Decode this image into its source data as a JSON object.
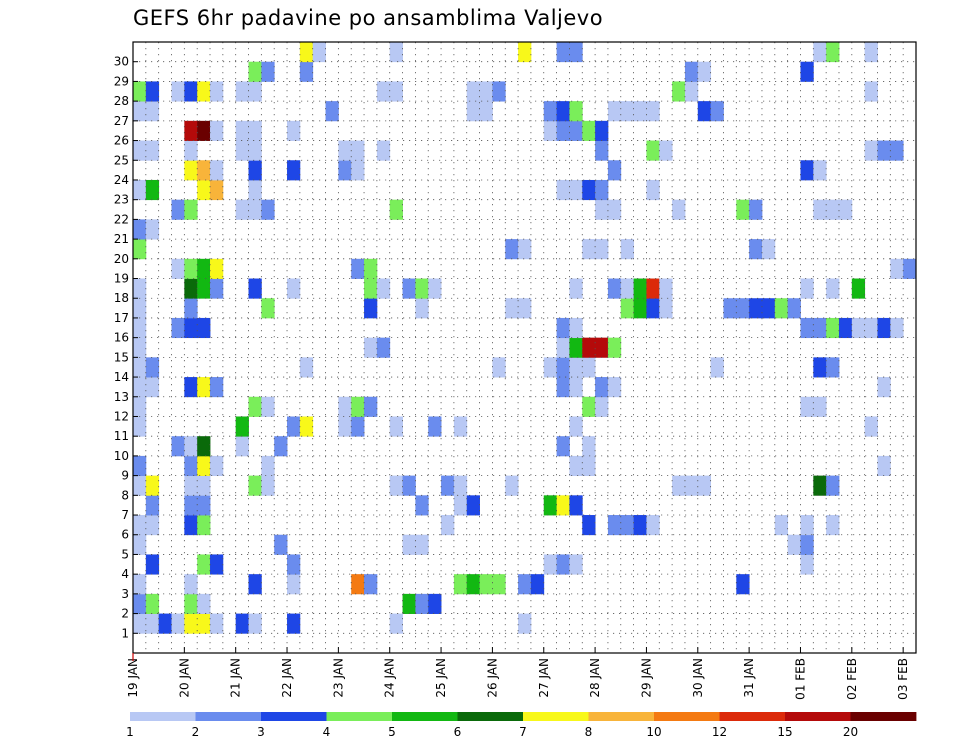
{
  "chart_data": {
    "type": "heatmap",
    "title": "GEFS 6hr padavine po ansamblima Valjevo",
    "xlabel": "",
    "ylabel": "",
    "x_tick_labels": [
      "19 JAN",
      "20 JAN",
      "21 JAN",
      "22 JAN",
      "23 JAN",
      "24 JAN",
      "25 JAN",
      "26 JAN",
      "27 JAN",
      "28 JAN",
      "29 JAN",
      "30 JAN",
      "31 JAN",
      "01 FEB",
      "02 FEB",
      "03 FEB"
    ],
    "y_tick_labels": [
      "1",
      "2",
      "3",
      "4",
      "5",
      "6",
      "7",
      "8",
      "9",
      "10",
      "11",
      "12",
      "13",
      "14",
      "15",
      "16",
      "17",
      "18",
      "19",
      "20",
      "21",
      "22",
      "23",
      "24",
      "25",
      "26",
      "27",
      "28",
      "29",
      "30"
    ],
    "time_steps": 61,
    "members": 31,
    "grid": true,
    "legend": {
      "placement": "bottom",
      "colors": [
        "#b8c8f4",
        "#6a8cee",
        "#1e46e6",
        "#7aee5a",
        "#12b812",
        "#0a6a0a",
        "#f8f81a",
        "#f8b43a",
        "#f47a12",
        "#dc2a0a",
        "#b40a0a",
        "#6a0000"
      ],
      "labels": [
        "1",
        "2",
        "3",
        "4",
        "5",
        "6",
        "7",
        "8",
        "10",
        "12",
        "15",
        "20"
      ]
    },
    "cells": [
      [
        0,
        1,
        1
      ],
      [
        1,
        1,
        1
      ],
      [
        2,
        1,
        3
      ],
      [
        3,
        1,
        1
      ],
      [
        4,
        1,
        7
      ],
      [
        5,
        1,
        7
      ],
      [
        6,
        1,
        1
      ],
      [
        8,
        1,
        3
      ],
      [
        9,
        1,
        1
      ],
      [
        12,
        1,
        3
      ],
      [
        20,
        1,
        1
      ],
      [
        30,
        1,
        1
      ],
      [
        0,
        2,
        2
      ],
      [
        1,
        2,
        4
      ],
      [
        4,
        2,
        4
      ],
      [
        5,
        2,
        1
      ],
      [
        21,
        2,
        5
      ],
      [
        22,
        2,
        2
      ],
      [
        23,
        2,
        3
      ],
      [
        0,
        3,
        1
      ],
      [
        4,
        3,
        1
      ],
      [
        9,
        3,
        3
      ],
      [
        12,
        3,
        1
      ],
      [
        17,
        3,
        9
      ],
      [
        18,
        3,
        2
      ],
      [
        25,
        3,
        4
      ],
      [
        26,
        3,
        5
      ],
      [
        27,
        3,
        4
      ],
      [
        28,
        3,
        4
      ],
      [
        30,
        3,
        2
      ],
      [
        31,
        3,
        3
      ],
      [
        47,
        3,
        3
      ],
      [
        1,
        4,
        3
      ],
      [
        5,
        4,
        4
      ],
      [
        6,
        4,
        3
      ],
      [
        12,
        4,
        2
      ],
      [
        32,
        4,
        1
      ],
      [
        33,
        4,
        2
      ],
      [
        34,
        4,
        1
      ],
      [
        52,
        4,
        1
      ],
      [
        0,
        5,
        1
      ],
      [
        11,
        5,
        2
      ],
      [
        21,
        5,
        1
      ],
      [
        22,
        5,
        1
      ],
      [
        51,
        5,
        1
      ],
      [
        52,
        5,
        2
      ],
      [
        0,
        6,
        1
      ],
      [
        1,
        6,
        1
      ],
      [
        4,
        6,
        3
      ],
      [
        5,
        6,
        4
      ],
      [
        24,
        6,
        1
      ],
      [
        35,
        6,
        3
      ],
      [
        37,
        6,
        2
      ],
      [
        38,
        6,
        2
      ],
      [
        39,
        6,
        3
      ],
      [
        40,
        6,
        1
      ],
      [
        50,
        6,
        1
      ],
      [
        52,
        6,
        1
      ],
      [
        54,
        6,
        1
      ],
      [
        1,
        7,
        2
      ],
      [
        4,
        7,
        2
      ],
      [
        5,
        7,
        2
      ],
      [
        22,
        7,
        2
      ],
      [
        25,
        7,
        1
      ],
      [
        26,
        7,
        3
      ],
      [
        32,
        7,
        5
      ],
      [
        33,
        7,
        7
      ],
      [
        34,
        7,
        3
      ],
      [
        0,
        8,
        1
      ],
      [
        1,
        8,
        7
      ],
      [
        4,
        8,
        1
      ],
      [
        5,
        8,
        1
      ],
      [
        9,
        8,
        4
      ],
      [
        10,
        8,
        1
      ],
      [
        20,
        8,
        1
      ],
      [
        21,
        8,
        2
      ],
      [
        24,
        8,
        2
      ],
      [
        25,
        8,
        1
      ],
      [
        29,
        8,
        1
      ],
      [
        42,
        8,
        1
      ],
      [
        43,
        8,
        1
      ],
      [
        44,
        8,
        1
      ],
      [
        53,
        8,
        6
      ],
      [
        54,
        8,
        2
      ],
      [
        0,
        9,
        2
      ],
      [
        4,
        9,
        2
      ],
      [
        5,
        9,
        7
      ],
      [
        6,
        9,
        1
      ],
      [
        10,
        9,
        1
      ],
      [
        34,
        9,
        1
      ],
      [
        35,
        9,
        1
      ],
      [
        58,
        9,
        1
      ],
      [
        3,
        10,
        2
      ],
      [
        4,
        10,
        1
      ],
      [
        5,
        10,
        6
      ],
      [
        8,
        10,
        1
      ],
      [
        11,
        10,
        2
      ],
      [
        33,
        10,
        2
      ],
      [
        35,
        10,
        1
      ],
      [
        0,
        11,
        1
      ],
      [
        8,
        11,
        5
      ],
      [
        12,
        11,
        2
      ],
      [
        13,
        11,
        7
      ],
      [
        16,
        11,
        1
      ],
      [
        17,
        11,
        2
      ],
      [
        20,
        11,
        1
      ],
      [
        23,
        11,
        2
      ],
      [
        25,
        11,
        1
      ],
      [
        34,
        11,
        1
      ],
      [
        57,
        11,
        1
      ],
      [
        0,
        12,
        1
      ],
      [
        9,
        12,
        4
      ],
      [
        10,
        12,
        1
      ],
      [
        16,
        12,
        1
      ],
      [
        17,
        12,
        4
      ],
      [
        18,
        12,
        2
      ],
      [
        35,
        12,
        4
      ],
      [
        36,
        12,
        1
      ],
      [
        52,
        12,
        1
      ],
      [
        53,
        12,
        1
      ],
      [
        0,
        13,
        1
      ],
      [
        1,
        13,
        1
      ],
      [
        4,
        13,
        3
      ],
      [
        5,
        13,
        7
      ],
      [
        6,
        13,
        2
      ],
      [
        33,
        13,
        2
      ],
      [
        34,
        13,
        1
      ],
      [
        36,
        13,
        2
      ],
      [
        37,
        13,
        1
      ],
      [
        58,
        13,
        1
      ],
      [
        0,
        14,
        1
      ],
      [
        1,
        14,
        2
      ],
      [
        13,
        14,
        1
      ],
      [
        28,
        14,
        1
      ],
      [
        32,
        14,
        1
      ],
      [
        33,
        14,
        2
      ],
      [
        34,
        14,
        1
      ],
      [
        35,
        14,
        1
      ],
      [
        45,
        14,
        1
      ],
      [
        53,
        14,
        3
      ],
      [
        54,
        14,
        2
      ],
      [
        0,
        15,
        1
      ],
      [
        18,
        15,
        1
      ],
      [
        19,
        15,
        2
      ],
      [
        33,
        15,
        1
      ],
      [
        34,
        15,
        5
      ],
      [
        35,
        15,
        11
      ],
      [
        36,
        15,
        11
      ],
      [
        37,
        15,
        4
      ],
      [
        0,
        16,
        1
      ],
      [
        3,
        16,
        2
      ],
      [
        4,
        16,
        3
      ],
      [
        5,
        16,
        3
      ],
      [
        33,
        16,
        2
      ],
      [
        34,
        16,
        1
      ],
      [
        52,
        16,
        2
      ],
      [
        53,
        16,
        2
      ],
      [
        54,
        16,
        4
      ],
      [
        55,
        16,
        3
      ],
      [
        56,
        16,
        1
      ],
      [
        57,
        16,
        1
      ],
      [
        58,
        16,
        3
      ],
      [
        59,
        16,
        1
      ],
      [
        0,
        17,
        1
      ],
      [
        4,
        17,
        2
      ],
      [
        10,
        17,
        4
      ],
      [
        18,
        17,
        3
      ],
      [
        22,
        17,
        1
      ],
      [
        29,
        17,
        1
      ],
      [
        30,
        17,
        1
      ],
      [
        38,
        17,
        4
      ],
      [
        39,
        17,
        5
      ],
      [
        40,
        17,
        3
      ],
      [
        41,
        17,
        1
      ],
      [
        46,
        17,
        2
      ],
      [
        47,
        17,
        2
      ],
      [
        48,
        17,
        3
      ],
      [
        49,
        17,
        3
      ],
      [
        50,
        17,
        4
      ],
      [
        51,
        17,
        2
      ],
      [
        0,
        18,
        1
      ],
      [
        4,
        18,
        6
      ],
      [
        5,
        18,
        5
      ],
      [
        6,
        18,
        2
      ],
      [
        9,
        18,
        3
      ],
      [
        12,
        18,
        1
      ],
      [
        18,
        18,
        4
      ],
      [
        19,
        18,
        1
      ],
      [
        21,
        18,
        2
      ],
      [
        22,
        18,
        4
      ],
      [
        23,
        18,
        1
      ],
      [
        34,
        18,
        1
      ],
      [
        37,
        18,
        2
      ],
      [
        38,
        18,
        1
      ],
      [
        39,
        18,
        5
      ],
      [
        40,
        18,
        10
      ],
      [
        41,
        18,
        1
      ],
      [
        52,
        18,
        1
      ],
      [
        54,
        18,
        1
      ],
      [
        56,
        18,
        5
      ],
      [
        3,
        19,
        1
      ],
      [
        4,
        19,
        4
      ],
      [
        5,
        19,
        5
      ],
      [
        6,
        19,
        7
      ],
      [
        17,
        19,
        2
      ],
      [
        18,
        19,
        4
      ],
      [
        59,
        19,
        1
      ],
      [
        60,
        19,
        2
      ],
      [
        0,
        20,
        4
      ],
      [
        29,
        20,
        2
      ],
      [
        30,
        20,
        1
      ],
      [
        35,
        20,
        1
      ],
      [
        36,
        20,
        1
      ],
      [
        38,
        20,
        1
      ],
      [
        48,
        20,
        2
      ],
      [
        49,
        20,
        1
      ],
      [
        0,
        21,
        2
      ],
      [
        1,
        21,
        1
      ],
      [
        3,
        22,
        2
      ],
      [
        4,
        22,
        4
      ],
      [
        8,
        22,
        1
      ],
      [
        9,
        22,
        1
      ],
      [
        10,
        22,
        2
      ],
      [
        20,
        22,
        4
      ],
      [
        36,
        22,
        1
      ],
      [
        37,
        22,
        1
      ],
      [
        42,
        22,
        1
      ],
      [
        47,
        22,
        4
      ],
      [
        48,
        22,
        2
      ],
      [
        53,
        22,
        1
      ],
      [
        54,
        22,
        1
      ],
      [
        55,
        22,
        1
      ],
      [
        0,
        23,
        1
      ],
      [
        1,
        23,
        5
      ],
      [
        5,
        23,
        7
      ],
      [
        6,
        23,
        8
      ],
      [
        9,
        23,
        1
      ],
      [
        33,
        23,
        1
      ],
      [
        34,
        23,
        1
      ],
      [
        35,
        23,
        3
      ],
      [
        36,
        23,
        2
      ],
      [
        40,
        23,
        1
      ],
      [
        4,
        24,
        7
      ],
      [
        5,
        24,
        8
      ],
      [
        6,
        24,
        1
      ],
      [
        9,
        24,
        3
      ],
      [
        12,
        24,
        3
      ],
      [
        16,
        24,
        2
      ],
      [
        17,
        24,
        1
      ],
      [
        37,
        24,
        2
      ],
      [
        52,
        24,
        3
      ],
      [
        53,
        24,
        1
      ],
      [
        0,
        25,
        1
      ],
      [
        1,
        25,
        1
      ],
      [
        4,
        25,
        1
      ],
      [
        8,
        25,
        1
      ],
      [
        9,
        25,
        1
      ],
      [
        16,
        25,
        1
      ],
      [
        17,
        25,
        1
      ],
      [
        19,
        25,
        1
      ],
      [
        36,
        25,
        2
      ],
      [
        40,
        25,
        4
      ],
      [
        41,
        25,
        1
      ],
      [
        57,
        25,
        1
      ],
      [
        58,
        25,
        2
      ],
      [
        59,
        25,
        2
      ],
      [
        4,
        26,
        11
      ],
      [
        5,
        26,
        12
      ],
      [
        6,
        26,
        1
      ],
      [
        8,
        26,
        1
      ],
      [
        9,
        26,
        1
      ],
      [
        12,
        26,
        1
      ],
      [
        32,
        26,
        1
      ],
      [
        33,
        26,
        2
      ],
      [
        34,
        26,
        2
      ],
      [
        35,
        26,
        4
      ],
      [
        36,
        26,
        3
      ],
      [
        0,
        27,
        1
      ],
      [
        1,
        27,
        1
      ],
      [
        15,
        27,
        2
      ],
      [
        26,
        27,
        1
      ],
      [
        27,
        27,
        1
      ],
      [
        32,
        27,
        2
      ],
      [
        33,
        27,
        3
      ],
      [
        34,
        27,
        4
      ],
      [
        37,
        27,
        1
      ],
      [
        38,
        27,
        1
      ],
      [
        39,
        27,
        1
      ],
      [
        40,
        27,
        1
      ],
      [
        44,
        27,
        3
      ],
      [
        45,
        27,
        2
      ],
      [
        0,
        28,
        4
      ],
      [
        1,
        28,
        3
      ],
      [
        3,
        28,
        1
      ],
      [
        4,
        28,
        3
      ],
      [
        5,
        28,
        7
      ],
      [
        6,
        28,
        1
      ],
      [
        8,
        28,
        1
      ],
      [
        9,
        28,
        1
      ],
      [
        19,
        28,
        1
      ],
      [
        20,
        28,
        1
      ],
      [
        26,
        28,
        1
      ],
      [
        27,
        28,
        1
      ],
      [
        28,
        28,
        2
      ],
      [
        42,
        28,
        4
      ],
      [
        43,
        28,
        1
      ],
      [
        57,
        28,
        1
      ],
      [
        9,
        29,
        4
      ],
      [
        10,
        29,
        2
      ],
      [
        13,
        29,
        2
      ],
      [
        43,
        29,
        2
      ],
      [
        44,
        29,
        1
      ],
      [
        52,
        29,
        3
      ],
      [
        13,
        30,
        7
      ],
      [
        14,
        30,
        1
      ],
      [
        20,
        30,
        1
      ],
      [
        30,
        30,
        7
      ],
      [
        33,
        30,
        2
      ],
      [
        34,
        30,
        2
      ],
      [
        53,
        30,
        1
      ],
      [
        54,
        30,
        4
      ],
      [
        57,
        30,
        1
      ]
    ]
  }
}
